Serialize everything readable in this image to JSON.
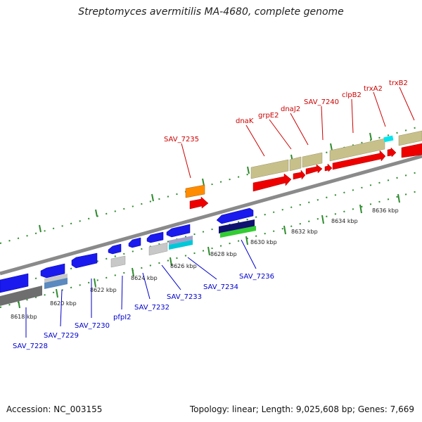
{
  "title": "Streptomyces avermitilis MA-4680, complete genome",
  "footer": {
    "accession": "Accession: NC_003155",
    "summary": "Topology: linear; Length: 9,025,608 bp; Genes: 7,669"
  },
  "colors": {
    "backbone": "#8a8a8a",
    "tick": "#2e8b2e",
    "plus_label": "#cc0000",
    "minus_label": "#0000cc",
    "gene_red": "#ee0000",
    "gene_blue": "#1a1aee",
    "gene_tan": "#c8c08a",
    "gene_orange": "#ff8c00",
    "gene_cyan": "#00e5ee",
    "gene_gray": "#c8c8c8"
  },
  "scale_labels": [
    "8618 kbp",
    "8620 kbp",
    "8622 kbp",
    "8624 kbp",
    "8626 kbp",
    "8628 kbp",
    "8630 kbp",
    "8632 kbp",
    "8634 kbp",
    "8636 kbp"
  ],
  "plus_genes": [
    "SAV_7235",
    "dnaK",
    "grpE2",
    "dnaJ2",
    "SAV_7240",
    "clpB2",
    "trxA2",
    "trxB2"
  ],
  "minus_genes": [
    "SAV_7228",
    "SAV_7229",
    "SAV_7230",
    "pfpI2",
    "SAV_7232",
    "SAV_7233",
    "SAV_7234",
    "SAV_7236"
  ]
}
